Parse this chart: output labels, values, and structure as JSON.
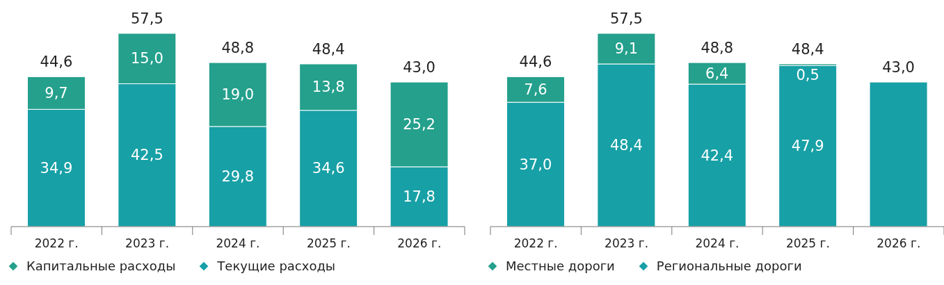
{
  "chart_data": [
    {
      "type": "bar",
      "stacked": true,
      "categories": [
        "2022 г.",
        "2023 г.",
        "2024 г.",
        "2025 г.",
        "2026 г."
      ],
      "series": [
        {
          "name": "Текущие расходы",
          "color": "#17a0a6",
          "values": [
            34.9,
            42.5,
            29.8,
            34.6,
            17.8
          ],
          "value_labels": [
            "34,9",
            "42,5",
            "29,8",
            "34,6",
            "17,8"
          ]
        },
        {
          "name": "Капитальные расходы",
          "color": "#24a08c",
          "values": [
            9.7,
            15.0,
            19.0,
            13.8,
            25.2
          ],
          "value_labels": [
            "9,7",
            "15,0",
            "19,0",
            "13,8",
            "25,2"
          ]
        }
      ],
      "totals": [
        "44,6",
        "57,5",
        "48,8",
        "48,4",
        "43,0"
      ],
      "legend": "bottom"
    },
    {
      "type": "bar",
      "stacked": true,
      "categories": [
        "2022 г.",
        "2023 г.",
        "2024 г.",
        "2025 г.",
        "2026 г."
      ],
      "series": [
        {
          "name": "Региональные дороги",
          "color": "#17a0a6",
          "values": [
            37.0,
            48.4,
            42.4,
            47.9,
            43.0
          ],
          "value_labels": [
            "37,0",
            "48,4",
            "42,4",
            "47,9",
            null
          ]
        },
        {
          "name": "Местные дороги",
          "color": "#24a08c",
          "values": [
            7.6,
            9.1,
            6.4,
            0.5,
            null
          ],
          "value_labels": [
            "7,6",
            "9,1",
            "6,4",
            "0,5",
            null
          ]
        }
      ],
      "totals": [
        "44,6",
        "57,5",
        "48,8",
        "48,4",
        "43,0"
      ],
      "legend": "bottom"
    }
  ]
}
